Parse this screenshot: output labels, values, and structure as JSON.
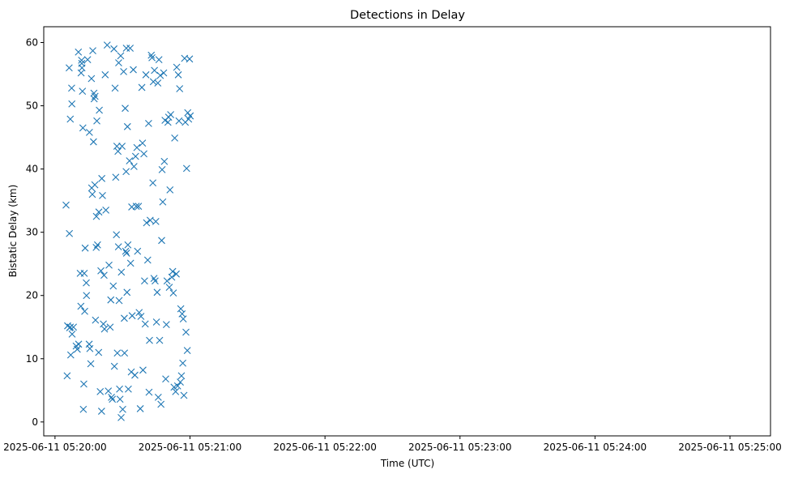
{
  "chart_data": {
    "type": "scatter",
    "title": "Detections in Delay",
    "xlabel": "Time (UTC)",
    "ylabel": "Bistatic Delay (km)",
    "marker": "x",
    "color": "#1f77b4",
    "grid": false,
    "x_scale": "time",
    "xlim": [
      "2025-06-11 05:19:55",
      "2025-06-11 05:25:18"
    ],
    "ylim": [
      -2.2,
      62.5
    ],
    "x_ticks": [
      "2025-06-11 05:20:00",
      "2025-06-11 05:21:00",
      "2025-06-11 05:22:00",
      "2025-06-11 05:23:00",
      "2025-06-11 05:24:00",
      "2025-06-11 05:25:00"
    ],
    "y_ticks": [
      0,
      10,
      20,
      30,
      40,
      50,
      60
    ],
    "x_time_seconds_from_start_tick_note": "x values below are in time units (seconds after 05:20:00 UTC) read off the time axis",
    "points": [
      [
        4.9,
        34.3
      ],
      [
        5.4,
        7.3
      ],
      [
        5.6,
        15.2
      ],
      [
        6.3,
        56.0
      ],
      [
        6.4,
        29.8
      ],
      [
        6.5,
        14.9
      ],
      [
        6.8,
        47.9
      ],
      [
        6.8,
        15.0
      ],
      [
        7.0,
        10.6
      ],
      [
        7.4,
        52.8
      ],
      [
        7.5,
        50.3
      ],
      [
        7.6,
        13.9
      ],
      [
        8.2,
        15.0
      ],
      [
        9.4,
        12.0
      ],
      [
        9.9,
        11.5
      ],
      [
        10.4,
        58.5
      ],
      [
        10.5,
        12.3
      ],
      [
        11.2,
        23.5
      ],
      [
        11.5,
        18.3
      ],
      [
        11.6,
        55.2
      ],
      [
        11.8,
        57.2
      ],
      [
        11.9,
        56.7
      ],
      [
        12.0,
        56.0
      ],
      [
        12.2,
        52.3
      ],
      [
        12.4,
        46.5
      ],
      [
        12.6,
        2.0
      ],
      [
        12.8,
        6.0
      ],
      [
        13.0,
        23.5
      ],
      [
        13.2,
        17.5
      ],
      [
        13.4,
        27.5
      ],
      [
        13.9,
        22.0
      ],
      [
        14.0,
        20.0
      ],
      [
        14.5,
        57.3
      ],
      [
        15.2,
        12.3
      ],
      [
        15.3,
        45.8
      ],
      [
        15.5,
        11.6
      ],
      [
        15.9,
        9.2
      ],
      [
        16.2,
        54.3
      ],
      [
        16.3,
        37.0
      ],
      [
        16.6,
        36.0
      ],
      [
        16.8,
        58.7
      ],
      [
        17.1,
        44.3
      ],
      [
        17.3,
        52.0
      ],
      [
        17.4,
        51.1
      ],
      [
        17.7,
        37.5
      ],
      [
        17.8,
        51.5
      ],
      [
        18.0,
        16.1
      ],
      [
        18.3,
        27.6
      ],
      [
        18.4,
        32.5
      ],
      [
        18.6,
        47.6
      ],
      [
        18.9,
        28.0
      ],
      [
        19.4,
        11.0
      ],
      [
        19.5,
        33.2
      ],
      [
        19.7,
        49.3
      ],
      [
        20.1,
        4.8
      ],
      [
        20.4,
        23.9
      ],
      [
        20.7,
        1.7
      ],
      [
        20.8,
        38.5
      ],
      [
        21.1,
        35.8
      ],
      [
        21.5,
        15.5
      ],
      [
        21.8,
        23.2
      ],
      [
        22.0,
        14.7
      ],
      [
        22.3,
        54.9
      ],
      [
        22.6,
        33.5
      ],
      [
        23.2,
        59.6
      ],
      [
        23.7,
        4.9
      ],
      [
        24.0,
        24.8
      ],
      [
        24.5,
        15.0
      ],
      [
        24.8,
        19.3
      ],
      [
        25.1,
        3.9
      ],
      [
        25.5,
        3.6
      ],
      [
        25.9,
        21.5
      ],
      [
        26.2,
        59.0
      ],
      [
        26.4,
        8.8
      ],
      [
        26.7,
        52.8
      ],
      [
        27.0,
        38.7
      ],
      [
        27.3,
        29.6
      ],
      [
        27.5,
        43.6
      ],
      [
        27.7,
        10.9
      ],
      [
        28.0,
        42.8
      ],
      [
        28.2,
        27.7
      ],
      [
        28.3,
        56.8
      ],
      [
        28.5,
        19.2
      ],
      [
        28.7,
        5.2
      ],
      [
        28.9,
        3.6
      ],
      [
        29.2,
        57.9
      ],
      [
        29.4,
        0.7
      ],
      [
        29.5,
        23.7
      ],
      [
        29.8,
        43.6
      ],
      [
        30.1,
        2.0
      ],
      [
        30.5,
        55.4
      ],
      [
        30.8,
        16.4
      ],
      [
        30.9,
        10.9
      ],
      [
        31.2,
        49.6
      ],
      [
        31.4,
        27.0
      ],
      [
        31.6,
        39.6
      ],
      [
        31.7,
        59.1
      ],
      [
        31.8,
        26.7
      ],
      [
        32.0,
        20.5
      ],
      [
        32.2,
        46.7
      ],
      [
        32.4,
        28.0
      ],
      [
        32.6,
        5.2
      ],
      [
        33.1,
        41.3
      ],
      [
        33.4,
        59.1
      ],
      [
        33.6,
        25.1
      ],
      [
        33.9,
        7.9
      ],
      [
        34.1,
        34.0
      ],
      [
        34.3,
        16.8
      ],
      [
        34.8,
        55.7
      ],
      [
        35.1,
        40.4
      ],
      [
        35.5,
        7.4
      ],
      [
        35.8,
        42.0
      ],
      [
        36.1,
        34.1
      ],
      [
        36.4,
        43.4
      ],
      [
        36.7,
        27.0
      ],
      [
        37.1,
        34.1
      ],
      [
        37.4,
        17.3
      ],
      [
        37.9,
        2.1
      ],
      [
        38.2,
        16.7
      ],
      [
        38.6,
        52.9
      ],
      [
        38.9,
        44.1
      ],
      [
        39.1,
        8.2
      ],
      [
        39.5,
        42.4
      ],
      [
        39.8,
        22.3
      ],
      [
        40.1,
        15.5
      ],
      [
        40.4,
        54.9
      ],
      [
        40.7,
        31.5
      ],
      [
        41.2,
        25.6
      ],
      [
        41.6,
        47.2
      ],
      [
        41.8,
        4.7
      ],
      [
        42.0,
        12.9
      ],
      [
        42.3,
        31.9
      ],
      [
        42.8,
        58.0
      ],
      [
        43.1,
        57.6
      ],
      [
        43.5,
        37.8
      ],
      [
        43.7,
        53.8
      ],
      [
        44.0,
        22.7
      ],
      [
        44.2,
        55.6
      ],
      [
        44.5,
        22.3
      ],
      [
        44.8,
        31.7
      ],
      [
        45.1,
        15.8
      ],
      [
        45.4,
        20.5
      ],
      [
        45.7,
        53.6
      ],
      [
        45.9,
        3.9
      ],
      [
        46.2,
        57.3
      ],
      [
        46.5,
        12.9
      ],
      [
        46.8,
        54.8
      ],
      [
        47.1,
        2.8
      ],
      [
        47.4,
        28.7
      ],
      [
        47.6,
        39.9
      ],
      [
        47.9,
        34.8
      ],
      [
        48.3,
        55.2
      ],
      [
        48.6,
        41.2
      ],
      [
        48.9,
        47.7
      ],
      [
        49.2,
        6.8
      ],
      [
        49.5,
        15.4
      ],
      [
        49.8,
        22.3
      ],
      [
        50.2,
        47.4
      ],
      [
        50.5,
        48.2
      ],
      [
        50.8,
        21.3
      ],
      [
        51.1,
        36.7
      ],
      [
        51.4,
        48.6
      ],
      [
        51.9,
        22.9
      ],
      [
        52.3,
        23.8
      ],
      [
        52.6,
        20.4
      ],
      [
        52.9,
        5.5
      ],
      [
        53.2,
        44.9
      ],
      [
        53.6,
        4.8
      ],
      [
        53.9,
        23.4
      ],
      [
        54.1,
        56.1
      ],
      [
        54.5,
        5.7
      ],
      [
        54.8,
        54.9
      ],
      [
        55.1,
        47.6
      ],
      [
        55.4,
        52.7
      ],
      [
        55.7,
        6.3
      ],
      [
        55.9,
        17.9
      ],
      [
        56.2,
        7.3
      ],
      [
        56.5,
        17.1
      ],
      [
        56.8,
        9.3
      ],
      [
        57.0,
        16.3
      ],
      [
        57.3,
        4.2
      ],
      [
        57.6,
        57.5
      ],
      [
        57.9,
        47.4
      ],
      [
        58.2,
        14.2
      ],
      [
        58.5,
        40.1
      ],
      [
        58.8,
        11.3
      ],
      [
        59.0,
        48.9
      ],
      [
        59.4,
        47.9
      ],
      [
        59.8,
        57.4
      ],
      [
        60.1,
        48.4
      ]
    ]
  }
}
